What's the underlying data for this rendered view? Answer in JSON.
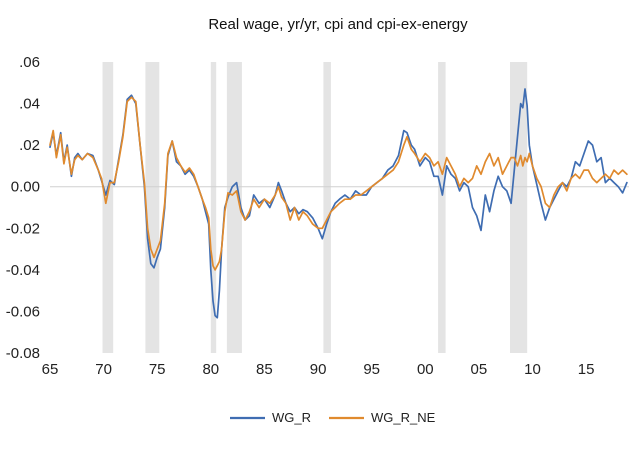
{
  "chart_data": {
    "type": "line",
    "title": "Real wage, yr/yr, cpi and cpi-ex-energy",
    "xlabel": "",
    "ylabel": "",
    "xlim": [
      1965,
      2019
    ],
    "ylim": [
      -0.08,
      0.06
    ],
    "x_ticks": [
      1965,
      1970,
      1975,
      1980,
      1985,
      1990,
      1995,
      2000,
      2005,
      2010,
      2015
    ],
    "x_tick_labels": [
      "65",
      "70",
      "75",
      "80",
      "85",
      "90",
      "95",
      "00",
      "05",
      "10",
      "15"
    ],
    "y_ticks": [
      0.06,
      0.04,
      0.02,
      0.0,
      -0.02,
      -0.04,
      -0.06,
      -0.08
    ],
    "y_tick_labels": [
      ".06",
      ".04",
      ".02",
      "0.00",
      "-0.02",
      "-0.04",
      "-0.06",
      "-0.08"
    ],
    "grid": false,
    "legend_position": "bottom-center",
    "recessions": [
      [
        1969.9,
        1970.9
      ],
      [
        1973.9,
        1975.2
      ],
      [
        1980.0,
        1980.5
      ],
      [
        1981.5,
        1982.9
      ],
      [
        1990.5,
        1991.2
      ],
      [
        2001.2,
        2001.9
      ],
      [
        2007.9,
        2009.5
      ]
    ],
    "series": [
      {
        "name": "WG_R",
        "color": "#3f6db2",
        "x": [
          1965.0,
          1965.3,
          1965.6,
          1966.0,
          1966.3,
          1966.6,
          1967.0,
          1967.3,
          1967.6,
          1968.0,
          1968.5,
          1969.0,
          1969.5,
          1969.8,
          1970.2,
          1970.6,
          1971.0,
          1971.4,
          1971.8,
          1972.2,
          1972.6,
          1973.0,
          1973.4,
          1973.8,
          1974.1,
          1974.4,
          1974.7,
          1975.0,
          1975.3,
          1975.7,
          1976.0,
          1976.4,
          1976.8,
          1977.2,
          1977.6,
          1978.0,
          1978.4,
          1978.8,
          1979.2,
          1979.5,
          1979.8,
          1980.0,
          1980.2,
          1980.4,
          1980.6,
          1980.8,
          1981.0,
          1981.3,
          1981.6,
          1982.0,
          1982.4,
          1982.8,
          1983.2,
          1983.6,
          1984.0,
          1984.5,
          1985.0,
          1985.5,
          1986.0,
          1986.3,
          1986.6,
          1987.0,
          1987.4,
          1987.8,
          1988.2,
          1988.6,
          1989.0,
          1989.5,
          1990.0,
          1990.4,
          1990.8,
          1991.2,
          1991.6,
          1992.0,
          1992.5,
          1993.0,
          1993.5,
          1994.0,
          1994.5,
          1995.0,
          1995.5,
          1996.0,
          1996.5,
          1997.0,
          1997.5,
          1998.0,
          1998.3,
          1998.7,
          1999.0,
          1999.5,
          2000.0,
          2000.4,
          2000.8,
          2001.2,
          2001.6,
          2002.0,
          2002.4,
          2002.8,
          2003.2,
          2003.6,
          2004.0,
          2004.4,
          2004.8,
          2005.2,
          2005.6,
          2006.0,
          2006.4,
          2006.8,
          2007.2,
          2007.6,
          2008.0,
          2008.3,
          2008.6,
          2008.9,
          2009.1,
          2009.3,
          2009.5,
          2009.7,
          2010.0,
          2010.4,
          2010.8,
          2011.2,
          2011.6,
          2012.0,
          2012.4,
          2012.8,
          2013.2,
          2013.6,
          2014.0,
          2014.4,
          2014.8,
          2015.2,
          2015.6,
          2016.0,
          2016.4,
          2016.8,
          2017.2,
          2017.6,
          2018.0,
          2018.4,
          2018.8
        ],
        "values": [
          0.019,
          0.026,
          0.015,
          0.026,
          0.012,
          0.02,
          0.005,
          0.014,
          0.016,
          0.013,
          0.016,
          0.015,
          0.008,
          0.003,
          -0.004,
          0.003,
          0.001,
          0.013,
          0.025,
          0.042,
          0.044,
          0.04,
          0.02,
          0.0,
          -0.025,
          -0.037,
          -0.039,
          -0.034,
          -0.03,
          -0.01,
          0.015,
          0.022,
          0.012,
          0.01,
          0.006,
          0.008,
          0.005,
          0.0,
          -0.006,
          -0.012,
          -0.018,
          -0.04,
          -0.055,
          -0.062,
          -0.063,
          -0.05,
          -0.03,
          -0.01,
          -0.005,
          0.0,
          0.002,
          -0.01,
          -0.016,
          -0.014,
          -0.004,
          -0.008,
          -0.006,
          -0.01,
          -0.004,
          0.002,
          -0.002,
          -0.008,
          -0.012,
          -0.01,
          -0.013,
          -0.011,
          -0.012,
          -0.015,
          -0.02,
          -0.025,
          -0.018,
          -0.012,
          -0.008,
          -0.006,
          -0.004,
          -0.006,
          -0.002,
          -0.004,
          -0.004,
          0.0,
          0.002,
          0.004,
          0.008,
          0.01,
          0.015,
          0.027,
          0.026,
          0.02,
          0.018,
          0.01,
          0.014,
          0.012,
          0.005,
          0.005,
          -0.004,
          0.01,
          0.006,
          0.004,
          -0.002,
          0.002,
          0.0,
          -0.01,
          -0.014,
          -0.021,
          -0.004,
          -0.012,
          -0.002,
          0.005,
          0.0,
          -0.002,
          -0.008,
          0.008,
          0.024,
          0.04,
          0.038,
          0.047,
          0.039,
          0.02,
          0.01,
          0.001,
          -0.008,
          -0.016,
          -0.01,
          -0.006,
          -0.002,
          0.002,
          0.0,
          0.004,
          0.012,
          0.01,
          0.016,
          0.022,
          0.02,
          0.012,
          0.014,
          0.002,
          0.004,
          0.002,
          0.0,
          -0.003,
          0.002
        ]
      },
      {
        "name": "WG_R_NE",
        "color": "#e08a2e",
        "x": [
          1965.0,
          1965.3,
          1965.6,
          1966.0,
          1966.3,
          1966.6,
          1967.0,
          1967.3,
          1967.6,
          1968.0,
          1968.5,
          1969.0,
          1969.5,
          1969.8,
          1970.2,
          1970.6,
          1971.0,
          1971.4,
          1971.8,
          1972.2,
          1972.6,
          1973.0,
          1973.4,
          1973.8,
          1974.1,
          1974.4,
          1974.7,
          1975.0,
          1975.3,
          1975.7,
          1976.0,
          1976.4,
          1976.8,
          1977.2,
          1977.6,
          1978.0,
          1978.4,
          1978.8,
          1979.2,
          1979.5,
          1979.8,
          1980.0,
          1980.2,
          1980.4,
          1980.6,
          1980.8,
          1981.0,
          1981.3,
          1981.6,
          1982.0,
          1982.4,
          1982.8,
          1983.2,
          1983.6,
          1984.0,
          1984.5,
          1985.0,
          1985.5,
          1986.0,
          1986.3,
          1986.6,
          1987.0,
          1987.4,
          1987.8,
          1988.2,
          1988.6,
          1989.0,
          1989.5,
          1990.0,
          1990.4,
          1990.8,
          1991.2,
          1991.6,
          1992.0,
          1992.5,
          1993.0,
          1993.5,
          1994.0,
          1994.5,
          1995.0,
          1995.5,
          1996.0,
          1996.5,
          1997.0,
          1997.5,
          1998.0,
          1998.3,
          1998.7,
          1999.0,
          1999.5,
          2000.0,
          2000.4,
          2000.8,
          2001.2,
          2001.6,
          2002.0,
          2002.4,
          2002.8,
          2003.2,
          2003.6,
          2004.0,
          2004.4,
          2004.8,
          2005.2,
          2005.6,
          2006.0,
          2006.4,
          2006.8,
          2007.2,
          2007.6,
          2008.0,
          2008.3,
          2008.6,
          2008.9,
          2009.1,
          2009.3,
          2009.5,
          2009.7,
          2010.0,
          2010.4,
          2010.8,
          2011.2,
          2011.6,
          2012.0,
          2012.4,
          2012.8,
          2013.2,
          2013.6,
          2014.0,
          2014.4,
          2014.8,
          2015.2,
          2015.6,
          2016.0,
          2016.4,
          2016.8,
          2017.2,
          2017.6,
          2018.0,
          2018.4,
          2018.8
        ],
        "values": [
          0.02,
          0.027,
          0.014,
          0.025,
          0.011,
          0.019,
          0.006,
          0.013,
          0.015,
          0.013,
          0.016,
          0.014,
          0.008,
          0.004,
          -0.008,
          0.002,
          0.002,
          0.012,
          0.024,
          0.041,
          0.043,
          0.041,
          0.02,
          0.002,
          -0.02,
          -0.03,
          -0.034,
          -0.03,
          -0.026,
          -0.008,
          0.016,
          0.022,
          0.014,
          0.01,
          0.007,
          0.009,
          0.006,
          0.0,
          -0.006,
          -0.01,
          -0.015,
          -0.03,
          -0.038,
          -0.04,
          -0.038,
          -0.036,
          -0.03,
          -0.012,
          -0.003,
          -0.004,
          -0.002,
          -0.012,
          -0.016,
          -0.012,
          -0.006,
          -0.01,
          -0.006,
          -0.008,
          -0.004,
          0.0,
          -0.005,
          -0.008,
          -0.016,
          -0.01,
          -0.016,
          -0.012,
          -0.014,
          -0.018,
          -0.02,
          -0.02,
          -0.016,
          -0.012,
          -0.01,
          -0.008,
          -0.006,
          -0.006,
          -0.004,
          -0.004,
          -0.002,
          0.0,
          0.002,
          0.004,
          0.006,
          0.008,
          0.012,
          0.02,
          0.024,
          0.018,
          0.016,
          0.012,
          0.016,
          0.014,
          0.01,
          0.012,
          0.006,
          0.014,
          0.01,
          0.006,
          0.0,
          0.004,
          0.002,
          0.004,
          0.01,
          0.006,
          0.012,
          0.016,
          0.01,
          0.014,
          0.006,
          0.01,
          0.014,
          0.014,
          0.01,
          0.015,
          0.01,
          0.014,
          0.012,
          0.016,
          0.01,
          0.004,
          0.0,
          -0.008,
          -0.01,
          -0.004,
          0.0,
          0.002,
          -0.002,
          0.004,
          0.006,
          0.004,
          0.008,
          0.008,
          0.004,
          0.002,
          0.004,
          0.006,
          0.004,
          0.008,
          0.006,
          0.008,
          0.006
        ]
      }
    ]
  }
}
